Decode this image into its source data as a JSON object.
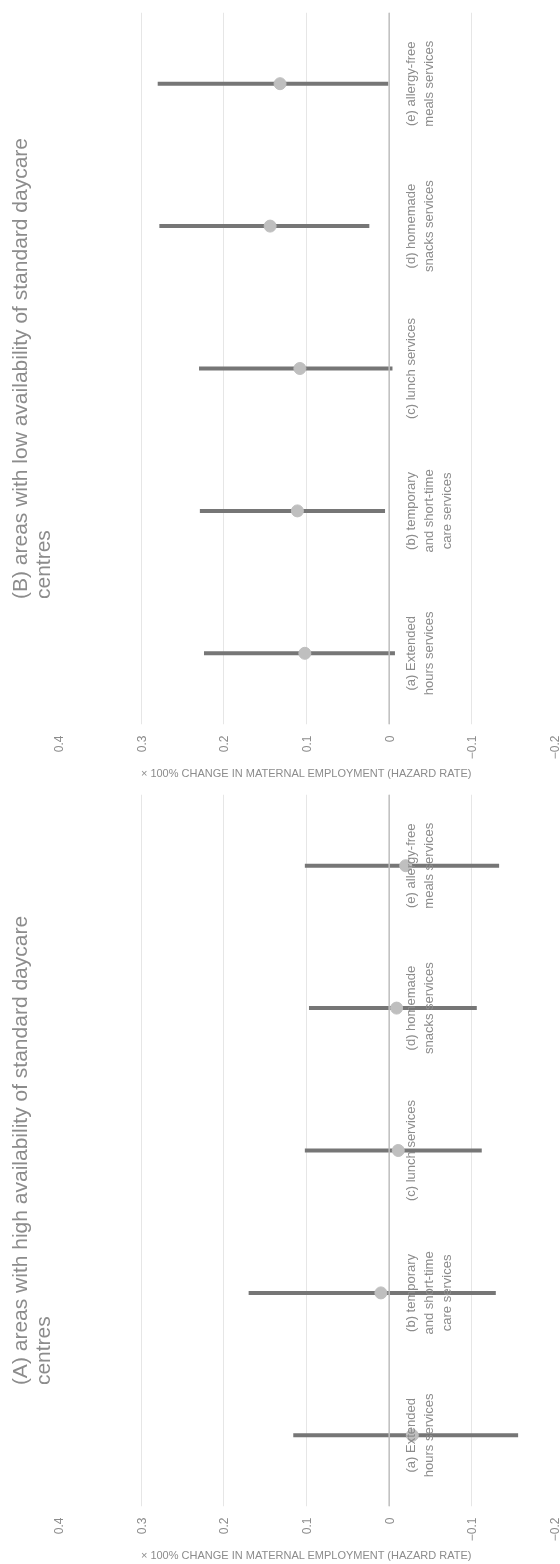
{
  "chart_data": [
    {
      "type": "scatter",
      "title": "(B) areas with low availability of standard daycare centres",
      "xlabel": "× 100% CHANGE IN MATERNAL EMPLOYMENT (HAZARD RATE)",
      "orientation": "horizontal",
      "categories": [
        "(e) allergy-free\nmeals services",
        "(d) homemade\nsnacks services",
        "(c) lunch services",
        "(b) temporary\nand short-time\ncare services",
        "(a) Extended\nhours services"
      ],
      "values": [
        0.132,
        0.144,
        0.108,
        0.111,
        0.102
      ],
      "errors": [
        [
          0.001,
          0.28
        ],
        [
          0.024,
          0.278
        ],
        [
          -0.004,
          0.23
        ],
        [
          0.005,
          0.229
        ],
        [
          -0.007,
          0.224
        ]
      ],
      "color": "#bfbfbf",
      "xlim": [
        0.4,
        -0.2
      ],
      "xticks": [
        0.4,
        0.3,
        0.2,
        0.1,
        0,
        -0.1,
        -0.2
      ],
      "grid": "x",
      "marker": "circle"
    },
    {
      "type": "scatter",
      "title": "(A) areas with high availability of standard daycare centres",
      "xlabel": "× 100% CHANGE IN MATERNAL EMPLOYMENT (HAZARD RATE)",
      "orientation": "horizontal",
      "categories": [
        "(e) allergy-free\nmeals services",
        "(d) homemade\nsnacks services",
        "(c) lunch services",
        "(b) temporary\nand short-time\ncare services",
        "(a) Extended\nhours services"
      ],
      "values": [
        -0.02,
        -0.009,
        -0.011,
        0.01,
        -0.028
      ],
      "errors": [
        [
          -0.133,
          0.102
        ],
        [
          -0.106,
          0.097
        ],
        [
          -0.112,
          0.102
        ],
        [
          -0.129,
          0.17
        ],
        [
          -0.156,
          0.116
        ]
      ],
      "color": "#bfbfbf",
      "xlim": [
        0.4,
        -0.2
      ],
      "xticks": [
        0.4,
        0.3,
        0.2,
        0.1,
        0,
        -0.1,
        -0.2
      ],
      "grid": "x",
      "marker": "circle"
    }
  ]
}
